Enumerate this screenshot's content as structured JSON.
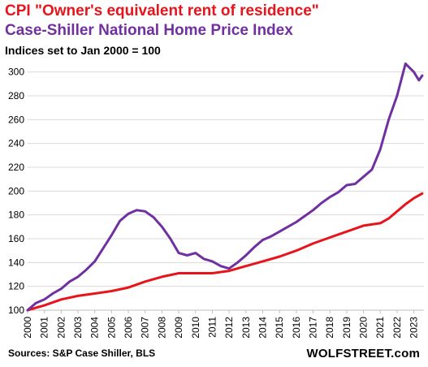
{
  "header": {
    "title_line1": "CPI \"Owner's equivalent rent of residence\"",
    "title_line2": "Case-Shiller National Home Price Index",
    "subtitle": "Indices set to Jan 2000 = 100"
  },
  "footer": {
    "source": "Sources: S&P Case Shiller, BLS",
    "brand": "WOLFSTREET.com"
  },
  "chart_data": {
    "type": "line",
    "title": "CPI \"Owner's equivalent rent of residence\" / Case-Shiller National Home Price Index",
    "subtitle": "Indices set to Jan 2000 = 100",
    "xlabel": "",
    "ylabel": "",
    "xlim": [
      2000,
      2023.6
    ],
    "ylim": [
      100,
      310
    ],
    "x_ticks": [
      "2000",
      "2001",
      "2002",
      "2003",
      "2004",
      "2005",
      "2006",
      "2007",
      "2008",
      "2009",
      "2010",
      "2011",
      "2012",
      "2013",
      "2014",
      "2015",
      "2016",
      "2017",
      "2018",
      "2019",
      "2020",
      "2021",
      "2022",
      "2023"
    ],
    "y_ticks": [
      100,
      120,
      140,
      160,
      180,
      200,
      220,
      240,
      260,
      280,
      300
    ],
    "grid": "horizontal",
    "legend": "none",
    "series": [
      {
        "name": "CPI \"Owner's equivalent rent of residence\"",
        "color": "#e8141c",
        "x": [
          2000,
          2001,
          2002,
          2003,
          2004,
          2005,
          2006,
          2007,
          2008,
          2009,
          2010,
          2011,
          2012,
          2013,
          2014,
          2015,
          2016,
          2017,
          2018,
          2019,
          2020,
          2021,
          2021.5,
          2022,
          2022.5,
          2023,
          2023.5
        ],
        "y": [
          100,
          104,
          109,
          112,
          114,
          116,
          119,
          124,
          128,
          131,
          131,
          131,
          133,
          137,
          141,
          145,
          150,
          156,
          161,
          166,
          171,
          173,
          177,
          183,
          189,
          194,
          198
        ]
      },
      {
        "name": "Case-Shiller National Home Price Index",
        "color": "#7030a0",
        "x": [
          2000,
          2000.5,
          2001,
          2001.5,
          2002,
          2002.5,
          2003,
          2003.5,
          2004,
          2004.5,
          2005,
          2005.5,
          2006,
          2006.5,
          2007,
          2007.5,
          2008,
          2008.5,
          2009,
          2009.5,
          2010,
          2010.5,
          2011,
          2011.5,
          2012,
          2012.5,
          2013,
          2013.5,
          2014,
          2014.5,
          2015,
          2015.5,
          2016,
          2016.5,
          2017,
          2017.5,
          2018,
          2018.5,
          2019,
          2019.5,
          2020,
          2020.5,
          2021,
          2021.5,
          2022,
          2022.5,
          2023,
          2023.3,
          2023.5
        ],
        "y": [
          100,
          106,
          109,
          114,
          118,
          124,
          128,
          134,
          141,
          152,
          163,
          175,
          181,
          184,
          183,
          178,
          170,
          160,
          148,
          146,
          148,
          143,
          141,
          137,
          135,
          140,
          146,
          153,
          159,
          162,
          166,
          170,
          174,
          179,
          184,
          190,
          195,
          199,
          205,
          206,
          212,
          218,
          235,
          260,
          280,
          307,
          300,
          293,
          297
        ]
      }
    ]
  }
}
